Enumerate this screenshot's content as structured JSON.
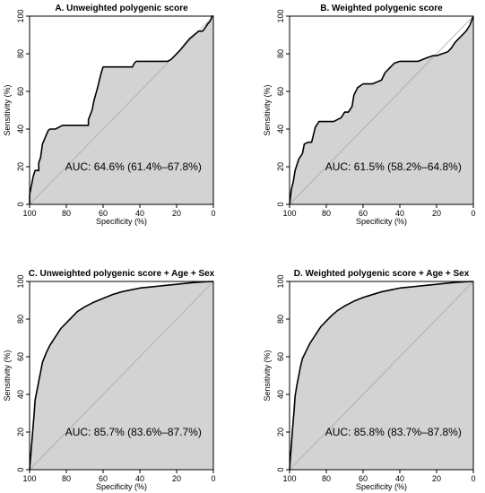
{
  "figure": {
    "panels_layout": "2x2 grid"
  },
  "chart_data": [
    {
      "type": "area",
      "title": "A. Unweighted polygenic score",
      "xlabel": "Specificity (%)",
      "ylabel": "Sensitivity (%)",
      "x_reversed": true,
      "xlim": [
        100,
        0
      ],
      "ylim": [
        0,
        100
      ],
      "xticks": [
        "100",
        "80",
        "60",
        "40",
        "20",
        "0"
      ],
      "yticks": [
        "0",
        "20",
        "40",
        "60",
        "80",
        "100"
      ],
      "auc_label": "AUC: 64.6% (61.4%–67.8%)",
      "reference_line": true,
      "fill_color": "#d3d3d3",
      "line_color": "#000000",
      "curve": {
        "specificity": [
          100,
          100,
          99,
          98,
          97,
          95,
          95,
          94,
          93,
          90,
          89,
          86,
          82,
          78,
          74,
          70,
          68,
          68,
          66,
          65,
          63,
          61,
          60,
          52,
          45,
          44,
          43,
          42,
          37,
          30,
          25,
          23,
          18,
          13,
          8,
          6,
          5,
          3,
          2,
          1,
          1,
          0
        ],
        "sensitivity": [
          0,
          5,
          10,
          15,
          18,
          18,
          22,
          25,
          32,
          39,
          40,
          40,
          42,
          42,
          42,
          42,
          42,
          45,
          50,
          55,
          62,
          70,
          73,
          73,
          73,
          73,
          75,
          76,
          76,
          76,
          76,
          77,
          82,
          88,
          92,
          92,
          93,
          96,
          97,
          99,
          100,
          100
        ]
      }
    },
    {
      "type": "area",
      "title": "B. Weighted polygenic score",
      "xlabel": "Specificity (%)",
      "ylabel": "Sensitivity (%)",
      "x_reversed": true,
      "xlim": [
        100,
        0
      ],
      "ylim": [
        0,
        100
      ],
      "xticks": [
        "100",
        "80",
        "60",
        "40",
        "20",
        "0"
      ],
      "yticks": [
        "0",
        "20",
        "40",
        "60",
        "80",
        "100"
      ],
      "auc_label": "AUC: 61.5% (58.2%–64.8%)",
      "reference_line": true,
      "fill_color": "#d3d3d3",
      "line_color": "#000000",
      "curve": {
        "specificity": [
          100,
          99,
          98,
          97,
          96,
          95,
          93,
          92,
          90,
          88,
          87,
          86,
          84,
          82,
          80,
          76,
          72,
          70,
          68,
          66,
          65,
          63,
          60,
          56,
          55,
          50,
          48,
          45,
          43,
          40,
          38,
          30,
          25,
          22,
          20,
          17,
          14,
          12,
          10,
          8,
          6,
          4,
          2,
          0
        ],
        "sensitivity": [
          0,
          8,
          12,
          18,
          21,
          24,
          27,
          32,
          33,
          33,
          37,
          41,
          44,
          44,
          44,
          44,
          46,
          49,
          49,
          52,
          58,
          62,
          64,
          64,
          64,
          66,
          70,
          73,
          75,
          76,
          76,
          76,
          78,
          79,
          79,
          80,
          81,
          83,
          86,
          88,
          90,
          92,
          95,
          100
        ]
      }
    },
    {
      "type": "area",
      "title": "C. Unweighted polygenic score + Age + Sex",
      "xlabel": "Specificity (%)",
      "ylabel": "Sensitivity (%)",
      "x_reversed": true,
      "xlim": [
        100,
        0
      ],
      "ylim": [
        0,
        100
      ],
      "xticks": [
        "100",
        "80",
        "60",
        "40",
        "20",
        "0"
      ],
      "yticks": [
        "0",
        "20",
        "40",
        "60",
        "80",
        "100"
      ],
      "auc_label": "AUC: 85.7% (83.6%–87.7%)",
      "reference_line": true,
      "fill_color": "#d3d3d3",
      "line_color": "#000000",
      "curve": {
        "specificity": [
          100,
          99.5,
          99,
          98.5,
          98,
          97.5,
          97,
          96,
          95,
          94,
          93,
          91,
          89,
          87,
          85,
          83,
          80,
          77,
          74,
          70,
          65,
          60,
          55,
          50,
          45,
          40,
          35,
          30,
          25,
          20,
          15,
          10,
          5,
          0
        ],
        "sensitivity": [
          0,
          6,
          12,
          18,
          24,
          30,
          37,
          42,
          47,
          52,
          57,
          62,
          66,
          69,
          72,
          75,
          78,
          81,
          84,
          86.5,
          89,
          91,
          93,
          94.5,
          95.5,
          96.5,
          97,
          97.5,
          98,
          98.5,
          99,
          99.5,
          99.8,
          100
        ]
      }
    },
    {
      "type": "area",
      "title": "D. Weighted polygenic score + Age + Sex",
      "xlabel": "Specificity (%)",
      "ylabel": "Sensitivity (%)",
      "x_reversed": true,
      "xlim": [
        100,
        0
      ],
      "ylim": [
        0,
        100
      ],
      "xticks": [
        "100",
        "80",
        "60",
        "40",
        "20",
        "0"
      ],
      "yticks": [
        "0",
        "20",
        "40",
        "60",
        "80",
        "100"
      ],
      "auc_label": "AUC: 85.8% (83.7%–87.8%)",
      "reference_line": true,
      "fill_color": "#d3d3d3",
      "line_color": "#000000",
      "curve": {
        "specificity": [
          100,
          99.5,
          99,
          98.5,
          98,
          97.5,
          97,
          96,
          95,
          94,
          93,
          91,
          89,
          87,
          85,
          83,
          80,
          77,
          74,
          70,
          65,
          60,
          55,
          50,
          45,
          40,
          35,
          30,
          25,
          20,
          15,
          10,
          5,
          0
        ],
        "sensitivity": [
          0,
          7,
          13,
          20,
          26,
          32,
          39,
          45,
          50,
          55,
          59,
          63,
          67,
          70,
          73,
          76,
          79,
          82,
          84.5,
          87,
          89.5,
          91.5,
          93,
          94.5,
          95.5,
          96.5,
          97,
          97.5,
          98,
          98.5,
          99,
          99.5,
          99.8,
          100
        ]
      }
    }
  ]
}
